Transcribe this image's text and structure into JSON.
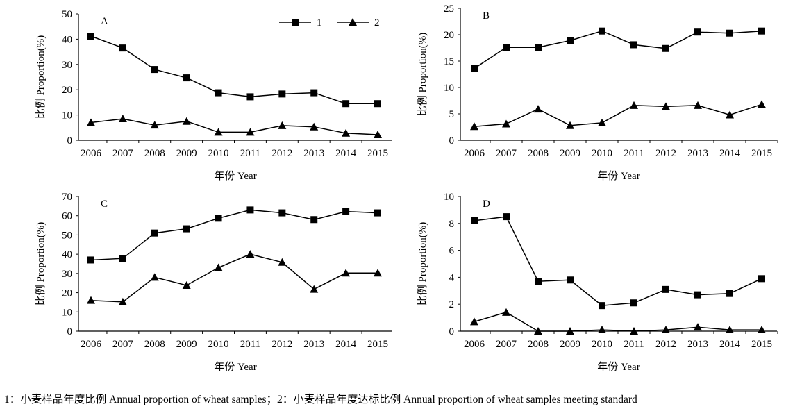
{
  "caption": "1：小麦样品年度比例 Annual proportion of wheat samples；2：小麦样品年度达标比例 Annual proportion of wheat samples meeting standard",
  "legend": [
    {
      "label": "1",
      "marker": "square"
    },
    {
      "label": "2",
      "marker": "triangle"
    }
  ],
  "chart_data": [
    {
      "type": "line",
      "panel": "A",
      "categories": [
        "2006",
        "2007",
        "2008",
        "2009",
        "2010",
        "2011",
        "2012",
        "2013",
        "2014",
        "2015"
      ],
      "series": [
        {
          "name": "1",
          "marker": "square",
          "values": [
            41.2,
            36.5,
            28.0,
            24.7,
            18.8,
            17.2,
            18.3,
            18.8,
            14.5,
            14.5
          ]
        },
        {
          "name": "2",
          "marker": "triangle",
          "values": [
            7.0,
            8.5,
            6.0,
            7.5,
            3.2,
            3.2,
            5.8,
            5.3,
            2.8,
            2.2
          ]
        }
      ],
      "ylim": [
        0,
        50
      ],
      "yticks": [
        0,
        10,
        20,
        30,
        40,
        50
      ],
      "xlabel": "年份 Year",
      "ylabel": "比例 Proportion(%)",
      "legend_position": "top-right",
      "grid": false
    },
    {
      "type": "line",
      "panel": "B",
      "categories": [
        "2006",
        "2007",
        "2008",
        "2009",
        "2010",
        "2011",
        "2012",
        "2013",
        "2014",
        "2015"
      ],
      "series": [
        {
          "name": "1",
          "marker": "square",
          "values": [
            13.6,
            17.6,
            17.6,
            18.9,
            20.7,
            18.1,
            17.4,
            20.5,
            20.3,
            20.7
          ]
        },
        {
          "name": "2",
          "marker": "triangle",
          "values": [
            2.6,
            3.1,
            5.9,
            2.8,
            3.3,
            6.6,
            6.4,
            6.6,
            4.8,
            6.8
          ]
        }
      ],
      "ylim": [
        0,
        25
      ],
      "yticks": [
        0,
        5,
        10,
        15,
        20,
        25
      ],
      "xlabel": "年份 Year",
      "ylabel": "比例 Proportion(%)",
      "grid": false
    },
    {
      "type": "line",
      "panel": "C",
      "categories": [
        "2006",
        "2007",
        "2008",
        "2009",
        "2010",
        "2011",
        "2012",
        "2013",
        "2014",
        "2015"
      ],
      "series": [
        {
          "name": "1",
          "marker": "square",
          "values": [
            37.0,
            37.8,
            51.0,
            53.2,
            58.7,
            63.0,
            61.5,
            58.0,
            62.2,
            61.5
          ]
        },
        {
          "name": "2",
          "marker": "triangle",
          "values": [
            16.0,
            15.2,
            28.0,
            23.8,
            33.0,
            40.0,
            35.8,
            21.8,
            30.2,
            30.2
          ]
        }
      ],
      "ylim": [
        0,
        70
      ],
      "yticks": [
        0,
        10,
        20,
        30,
        40,
        50,
        60,
        70
      ],
      "xlabel": "年份 Year",
      "ylabel": "比例 Proportion(%)",
      "grid": false
    },
    {
      "type": "line",
      "panel": "D",
      "categories": [
        "2006",
        "2007",
        "2008",
        "2009",
        "2010",
        "2011",
        "2012",
        "2013",
        "2014",
        "2015"
      ],
      "series": [
        {
          "name": "1",
          "marker": "square",
          "values": [
            8.2,
            8.5,
            3.7,
            3.8,
            1.9,
            2.1,
            3.1,
            2.7,
            2.8,
            3.9
          ]
        },
        {
          "name": "2",
          "marker": "triangle",
          "values": [
            0.7,
            1.4,
            0.0,
            0.0,
            0.1,
            0.0,
            0.1,
            0.3,
            0.1,
            0.1
          ]
        }
      ],
      "ylim": [
        0,
        10
      ],
      "yticks": [
        0,
        2,
        4,
        6,
        8,
        10
      ],
      "xlabel": "年份 Year",
      "ylabel": "比例 Proportion(%)",
      "grid": false
    }
  ]
}
